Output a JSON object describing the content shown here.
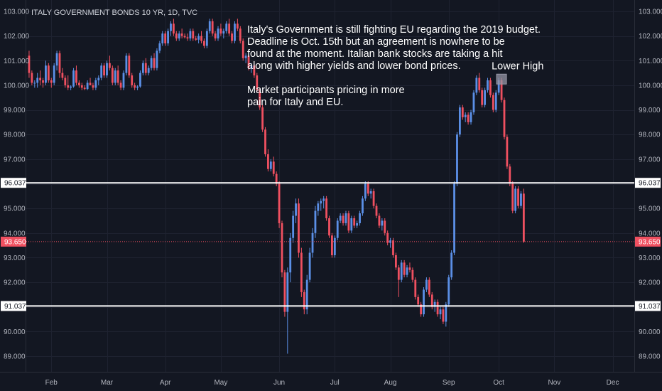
{
  "colors": {
    "background": "#131722",
    "grid": "#1e2230",
    "up": "#5b8fe6",
    "down": "#ef5060",
    "level_line": "#ffffff",
    "price_line": "#ef5060",
    "axis_text": "#b2b5be"
  },
  "chart_data": {
    "type": "candlestick",
    "title": "ITALY GOVERNMENT BONDS 10 YR, 1D, TVC",
    "ylim": [
      88.6,
      103.1
    ],
    "y_ticks": [
      89.0,
      90.0,
      91.0,
      92.0,
      93.0,
      94.0,
      95.0,
      96.0,
      97.0,
      98.0,
      99.0,
      100.0,
      101.0,
      102.0,
      103.0
    ],
    "y_tick_labels": [
      "89.000",
      "90.000",
      "91.000",
      "92.000",
      "93.000",
      "94.000",
      "95.000",
      "96.000",
      "97.000",
      "98.000",
      "99.000",
      "100.000",
      "101.000",
      "102.000",
      "103.000"
    ],
    "x_months": [
      {
        "label": "Feb",
        "index": 8
      },
      {
        "label": "Mar",
        "index": 28
      },
      {
        "label": "Apr",
        "index": 49
      },
      {
        "label": "May",
        "index": 69
      },
      {
        "label": "Jun",
        "index": 90
      },
      {
        "label": "Jul",
        "index": 110
      },
      {
        "label": "Aug",
        "index": 130
      },
      {
        "label": "Sep",
        "index": 151
      },
      {
        "label": "Oct",
        "index": 169
      },
      {
        "label": "Nov",
        "index": 189
      },
      {
        "label": "Dec",
        "index": 210
      }
    ],
    "x_index_range": [
      -0.5,
      216.5
    ],
    "horizontal_levels": [
      {
        "value": 96.037,
        "label": "96.037"
      },
      {
        "value": 91.037,
        "label": "91.037"
      }
    ],
    "last_price": {
      "value": 93.65,
      "label": "93.650"
    },
    "candles_ohlc": [
      [
        101.2,
        101.4,
        100.3,
        100.5
      ],
      [
        100.5,
        100.6,
        100.0,
        100.1
      ],
      [
        100.1,
        100.2,
        99.9,
        100.1
      ],
      [
        100.1,
        100.5,
        99.9,
        100.3
      ],
      [
        100.3,
        100.6,
        100.0,
        100.2
      ],
      [
        100.2,
        100.3,
        99.9,
        100.1
      ],
      [
        100.1,
        101.0,
        100.0,
        100.8
      ],
      [
        100.8,
        100.9,
        100.1,
        100.2
      ],
      [
        100.2,
        100.3,
        99.9,
        100.1
      ],
      [
        100.1,
        100.9,
        100.0,
        100.8
      ],
      [
        100.8,
        101.4,
        100.6,
        101.3
      ],
      [
        101.3,
        101.4,
        100.3,
        100.5
      ],
      [
        100.5,
        100.7,
        100.2,
        100.3
      ],
      [
        100.3,
        100.4,
        99.9,
        100.0
      ],
      [
        100.0,
        100.4,
        99.8,
        99.9
      ],
      [
        99.9,
        100.0,
        99.8,
        99.95
      ],
      [
        99.95,
        100.7,
        99.9,
        100.6
      ],
      [
        100.6,
        100.8,
        100.0,
        100.1
      ],
      [
        100.1,
        100.2,
        99.9,
        100.0
      ],
      [
        100.0,
        100.1,
        99.8,
        99.9
      ],
      [
        99.9,
        100.0,
        99.8,
        99.85
      ],
      [
        99.85,
        100.2,
        99.8,
        100.1
      ],
      [
        100.1,
        100.3,
        100.0,
        100.0
      ],
      [
        100.0,
        100.1,
        99.8,
        99.9
      ],
      [
        99.9,
        100.3,
        99.8,
        100.2
      ],
      [
        100.2,
        100.4,
        100.0,
        100.3
      ],
      [
        100.3,
        100.9,
        100.2,
        100.8
      ],
      [
        100.8,
        100.9,
        100.3,
        100.4
      ],
      [
        100.4,
        101.0,
        100.3,
        100.9
      ],
      [
        100.9,
        101.2,
        100.6,
        100.7
      ],
      [
        100.7,
        100.8,
        100.0,
        100.1
      ],
      [
        100.1,
        100.7,
        100.0,
        100.6
      ],
      [
        100.6,
        100.8,
        100.0,
        100.1
      ],
      [
        100.1,
        100.2,
        99.8,
        99.9
      ],
      [
        99.9,
        100.6,
        99.8,
        100.5
      ],
      [
        100.5,
        101.3,
        100.4,
        101.2
      ],
      [
        101.2,
        101.3,
        100.3,
        100.4
      ],
      [
        100.4,
        100.5,
        99.9,
        100.0
      ],
      [
        100.0,
        100.1,
        99.8,
        99.9
      ],
      [
        99.9,
        100.0,
        99.8,
        99.95
      ],
      [
        99.95,
        100.6,
        99.9,
        100.5
      ],
      [
        100.5,
        101.0,
        100.4,
        100.9
      ],
      [
        100.9,
        101.1,
        100.4,
        100.5
      ],
      [
        100.5,
        100.8,
        100.4,
        100.7
      ],
      [
        100.7,
        101.2,
        100.6,
        101.1
      ],
      [
        101.1,
        101.3,
        100.6,
        100.7
      ],
      [
        100.7,
        101.5,
        100.6,
        101.4
      ],
      [
        101.4,
        101.8,
        101.3,
        101.7
      ],
      [
        101.7,
        102.2,
        101.6,
        102.1
      ],
      [
        102.1,
        102.2,
        101.6,
        101.7
      ],
      [
        101.7,
        102.3,
        101.6,
        102.2
      ],
      [
        102.2,
        102.6,
        102.0,
        102.5
      ],
      [
        102.5,
        102.7,
        102.0,
        102.1
      ],
      [
        102.1,
        102.2,
        101.8,
        101.9
      ],
      [
        101.9,
        102.2,
        101.8,
        102.1
      ],
      [
        102.1,
        102.3,
        101.9,
        102.0
      ],
      [
        102.0,
        102.1,
        101.9,
        101.95
      ],
      [
        101.95,
        102.1,
        101.8,
        101.9
      ],
      [
        101.9,
        102.3,
        101.8,
        102.2
      ],
      [
        102.2,
        102.3,
        101.8,
        101.9
      ],
      [
        101.9,
        102.0,
        101.8,
        101.85
      ],
      [
        101.85,
        102.1,
        101.7,
        102.0
      ],
      [
        102.0,
        102.2,
        101.7,
        101.8
      ],
      [
        101.8,
        101.9,
        101.5,
        101.6
      ],
      [
        101.6,
        102.3,
        101.5,
        102.2
      ],
      [
        102.2,
        102.7,
        102.1,
        102.6
      ],
      [
        102.6,
        102.7,
        102.0,
        102.1
      ],
      [
        102.1,
        102.2,
        101.8,
        101.9
      ],
      [
        101.9,
        102.4,
        101.8,
        102.3
      ],
      [
        102.3,
        102.5,
        102.0,
        102.1
      ],
      [
        102.1,
        102.3,
        101.9,
        102.2
      ],
      [
        102.2,
        102.6,
        102.1,
        102.5
      ],
      [
        102.5,
        102.7,
        102.0,
        102.1
      ],
      [
        102.1,
        102.2,
        101.7,
        101.8
      ],
      [
        101.8,
        102.6,
        101.7,
        102.5
      ],
      [
        102.5,
        102.7,
        102.2,
        102.3
      ],
      [
        102.3,
        102.4,
        101.7,
        101.8
      ],
      [
        101.8,
        101.9,
        101.0,
        101.1
      ],
      [
        101.1,
        101.3,
        100.9,
        101.2
      ],
      [
        101.2,
        101.3,
        100.6,
        100.7
      ],
      [
        100.7,
        100.9,
        100.5,
        100.8
      ],
      [
        100.8,
        100.9,
        100.3,
        100.4
      ],
      [
        100.4,
        100.5,
        99.7,
        99.8
      ],
      [
        99.8,
        99.9,
        99.0,
        99.1
      ],
      [
        99.1,
        99.2,
        98.1,
        98.2
      ],
      [
        98.2,
        98.3,
        97.1,
        97.2
      ],
      [
        97.2,
        97.4,
        96.5,
        96.6
      ],
      [
        96.6,
        97.0,
        96.5,
        96.9
      ],
      [
        96.9,
        97.1,
        96.3,
        96.4
      ],
      [
        96.4,
        96.5,
        95.9,
        96.0
      ],
      [
        96.0,
        96.1,
        94.2,
        94.4
      ],
      [
        94.4,
        94.5,
        92.2,
        92.4
      ],
      [
        92.4,
        92.5,
        90.6,
        90.8
      ],
      [
        90.8,
        92.6,
        89.1,
        92.4
      ],
      [
        92.4,
        94.0,
        92.0,
        93.8
      ],
      [
        93.8,
        94.9,
        93.6,
        94.7
      ],
      [
        94.7,
        95.4,
        94.4,
        95.2
      ],
      [
        95.2,
        95.4,
        93.0,
        93.2
      ],
      [
        93.2,
        93.4,
        91.4,
        91.6
      ],
      [
        91.6,
        91.7,
        90.7,
        90.9
      ],
      [
        90.9,
        92.3,
        90.7,
        92.1
      ],
      [
        92.1,
        93.4,
        92.0,
        93.2
      ],
      [
        93.2,
        94.2,
        93.0,
        94.0
      ],
      [
        94.0,
        95.1,
        93.8,
        94.9
      ],
      [
        94.9,
        95.3,
        94.7,
        95.2
      ],
      [
        95.2,
        95.4,
        94.9,
        95.3
      ],
      [
        95.3,
        95.5,
        95.0,
        95.4
      ],
      [
        95.4,
        95.5,
        94.5,
        94.6
      ],
      [
        94.6,
        94.7,
        93.8,
        93.9
      ],
      [
        93.9,
        94.0,
        93.0,
        93.1
      ],
      [
        93.1,
        93.9,
        93.0,
        93.8
      ],
      [
        93.8,
        94.6,
        93.7,
        94.5
      ],
      [
        94.5,
        94.8,
        94.4,
        94.7
      ],
      [
        94.7,
        94.8,
        94.3,
        94.4
      ],
      [
        94.4,
        94.9,
        94.3,
        94.8
      ],
      [
        94.8,
        94.9,
        94.0,
        94.1
      ],
      [
        94.1,
        94.7,
        94.0,
        94.6
      ],
      [
        94.6,
        94.7,
        94.2,
        94.3
      ],
      [
        94.3,
        94.5,
        94.2,
        94.4
      ],
      [
        94.4,
        94.9,
        94.3,
        94.8
      ],
      [
        94.8,
        95.5,
        94.7,
        95.4
      ],
      [
        95.4,
        96.1,
        95.3,
        96.0
      ],
      [
        96.0,
        96.1,
        95.5,
        95.6
      ],
      [
        95.6,
        95.8,
        95.4,
        95.7
      ],
      [
        95.7,
        95.8,
        95.0,
        95.1
      ],
      [
        95.1,
        95.2,
        94.6,
        94.7
      ],
      [
        94.7,
        94.8,
        94.2,
        94.3
      ],
      [
        94.3,
        94.6,
        94.1,
        94.5
      ],
      [
        94.5,
        94.6,
        93.9,
        94.0
      ],
      [
        94.0,
        94.1,
        93.5,
        93.6
      ],
      [
        93.6,
        93.8,
        93.4,
        93.7
      ],
      [
        93.7,
        93.8,
        93.0,
        93.1
      ],
      [
        93.1,
        93.2,
        92.5,
        92.6
      ],
      [
        92.6,
        92.7,
        91.4,
        92.1
      ],
      [
        92.1,
        92.9,
        92.0,
        92.8
      ],
      [
        92.8,
        92.9,
        92.2,
        92.3
      ],
      [
        92.3,
        92.7,
        92.2,
        92.6
      ],
      [
        92.6,
        92.8,
        92.4,
        92.5
      ],
      [
        92.5,
        92.6,
        92.0,
        92.1
      ],
      [
        92.1,
        92.2,
        91.3,
        91.4
      ],
      [
        91.4,
        91.5,
        91.0,
        91.1
      ],
      [
        91.1,
        91.2,
        90.6,
        90.7
      ],
      [
        90.7,
        91.8,
        90.6,
        91.7
      ],
      [
        91.7,
        92.2,
        91.6,
        92.1
      ],
      [
        92.1,
        92.2,
        91.4,
        91.5
      ],
      [
        91.5,
        91.6,
        90.9,
        91.0
      ],
      [
        91.0,
        91.3,
        90.8,
        91.2
      ],
      [
        91.2,
        91.3,
        90.6,
        90.7
      ],
      [
        90.7,
        91.0,
        90.5,
        90.9
      ],
      [
        90.9,
        91.0,
        90.3,
        90.4
      ],
      [
        90.4,
        91.2,
        90.2,
        91.1
      ],
      [
        91.1,
        92.3,
        91.0,
        92.2
      ],
      [
        92.2,
        93.3,
        92.1,
        93.2
      ],
      [
        93.2,
        96.1,
        93.1,
        96.0
      ],
      [
        96.0,
        98.1,
        95.9,
        98.0
      ],
      [
        98.0,
        99.2,
        97.9,
        99.1
      ],
      [
        99.1,
        99.2,
        98.6,
        98.7
      ],
      [
        98.7,
        98.9,
        98.5,
        98.8
      ],
      [
        98.8,
        98.9,
        98.4,
        98.5
      ],
      [
        98.5,
        99.0,
        98.4,
        98.9
      ],
      [
        98.9,
        99.8,
        98.8,
        99.7
      ],
      [
        99.7,
        100.4,
        99.6,
        100.3
      ],
      [
        100.3,
        100.5,
        99.7,
        99.8
      ],
      [
        99.8,
        99.9,
        99.1,
        99.2
      ],
      [
        99.2,
        99.9,
        99.1,
        99.8
      ],
      [
        99.8,
        100.3,
        99.7,
        100.2
      ],
      [
        100.2,
        100.3,
        99.5,
        99.6
      ],
      [
        99.6,
        99.7,
        98.9,
        99.0
      ],
      [
        99.0,
        99.8,
        98.9,
        99.7
      ],
      [
        99.7,
        100.3,
        99.6,
        100.2
      ],
      [
        100.2,
        100.3,
        99.3,
        99.4
      ],
      [
        99.4,
        99.5,
        97.8,
        97.9
      ],
      [
        97.9,
        98.0,
        96.6,
        96.7
      ],
      [
        96.7,
        96.8,
        95.9,
        96.0
      ],
      [
        96.0,
        96.1,
        94.8,
        94.9
      ],
      [
        94.9,
        95.9,
        94.8,
        95.8
      ],
      [
        95.8,
        95.9,
        95.0,
        95.1
      ],
      [
        95.1,
        95.7,
        95.0,
        95.6
      ],
      [
        95.6,
        95.8,
        93.6,
        93.65
      ]
    ]
  },
  "annotations": {
    "commentary_lines": [
      "Italy's Government is still fighting EU regarding the 2019 budget.",
      "Deadline is Oct. 15th but an agreement is nowhere to be",
      "found at the moment. Italian bank stocks are taking a hit",
      "along with higher yields and lower bond prices.",
      "",
      "Market participants pricing in more",
      "pain for Italy and EU."
    ],
    "lower_high_label": "Lower High",
    "lower_high_index": 170,
    "lower_high_value": 100.25
  }
}
